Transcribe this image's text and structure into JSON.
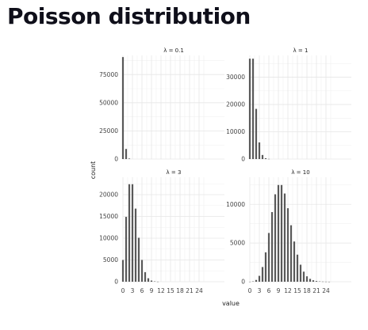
{
  "page": {
    "title": "Poisson distribution"
  },
  "chart_data": {
    "type": "bar",
    "facet_by": "lambda",
    "xlabel": "value",
    "ylabel": "count",
    "x_ticks": [
      0,
      3,
      6,
      9,
      12,
      15,
      18,
      21,
      24
    ],
    "xlim": [
      0,
      32
    ],
    "grid": true,
    "panels": [
      {
        "title": "λ = 0.1",
        "ylim": [
          0,
          92000
        ],
        "y_ticks": [
          0,
          25000,
          50000,
          75000
        ],
        "x": [
          0,
          1,
          2
        ],
        "values": [
          90500,
          9000,
          450
        ]
      },
      {
        "title": "λ = 1",
        "ylim": [
          0,
          38000
        ],
        "y_ticks": [
          0,
          10000,
          20000,
          30000
        ],
        "x": [
          0,
          1,
          2,
          3,
          4,
          5,
          6
        ],
        "values": [
          36800,
          36800,
          18400,
          6100,
          1500,
          310,
          50
        ]
      },
      {
        "title": "λ = 3",
        "ylim": [
          0,
          24000
        ],
        "y_ticks": [
          0,
          5000,
          10000,
          15000,
          20000
        ],
        "x": [
          0,
          1,
          2,
          3,
          4,
          5,
          6,
          7,
          8,
          9,
          10,
          11
        ],
        "values": [
          5000,
          14900,
          22400,
          22400,
          16800,
          10100,
          5000,
          2200,
          800,
          270,
          80,
          20
        ]
      },
      {
        "title": "λ = 10",
        "ylim": [
          0,
          13500
        ],
        "y_ticks": [
          0,
          5000,
          10000
        ],
        "x": [
          0,
          1,
          2,
          3,
          4,
          5,
          6,
          7,
          8,
          9,
          10,
          11,
          12,
          13,
          14,
          15,
          16,
          17,
          18,
          19,
          20,
          21,
          22,
          23,
          24,
          25
        ],
        "values": [
          5,
          45,
          230,
          760,
          1900,
          3800,
          6300,
          9000,
          11300,
          12500,
          12500,
          11400,
          9500,
          7300,
          5200,
          3500,
          2200,
          1300,
          700,
          370,
          190,
          90,
          40,
          20,
          8,
          3
        ]
      }
    ]
  }
}
